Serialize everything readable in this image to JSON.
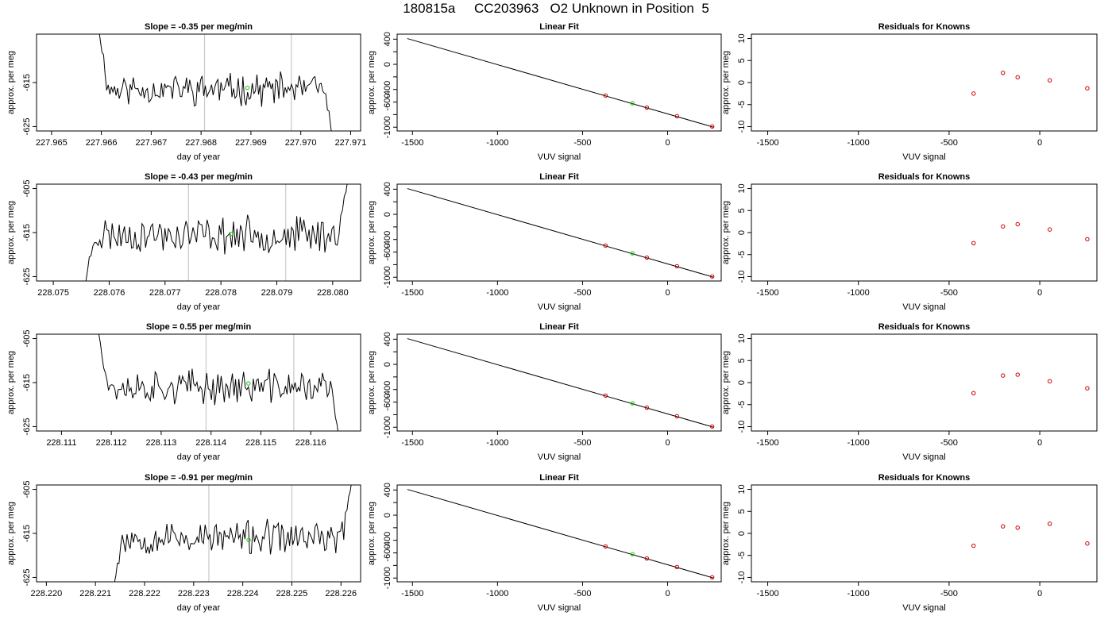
{
  "figure": {
    "title": "180815a     CC203963   O2 Unknown in Position  5"
  },
  "chart_data": [
    {
      "panel": "time-series-1",
      "type": "line",
      "title": "Slope =  -0.35  per meg/min",
      "xlabel": "day of year",
      "ylabel": "approx. per meg",
      "xlim": [
        227.9647,
        227.9712
      ],
      "ylim": [
        -626,
        -604
      ],
      "xticks": [
        227.965,
        227.966,
        227.967,
        227.968,
        227.969,
        227.97,
        227.971
      ],
      "xtick_labels": [
        "227.965",
        "227.966",
        "227.967",
        "227.968",
        "227.969",
        "227.970",
        "227.971"
      ],
      "yticks": [
        -625,
        -615
      ],
      "ytick_labels": [
        "-625",
        "-615"
      ],
      "series": [
        {
          "x0": 227.96595,
          "x1": 227.97066,
          "y_start": -603,
          "y_end": -630,
          "base": -616.5,
          "amp": 2.8,
          "seed": 11
        }
      ],
      "vlines": [
        227.96807,
        227.96981
      ],
      "highlight_point": {
        "x": 227.96893,
        "y": -616.2
      },
      "grid": false,
      "legend": "none"
    },
    {
      "panel": "linear-fit-1",
      "type": "scatter",
      "title": "Linear Fit",
      "xlabel": "VUV signal",
      "ylabel": "approx. per meg",
      "xlim": [
        -1590,
        315
      ],
      "ylim": [
        -1060,
        480
      ],
      "xticks": [
        -1500,
        -1000,
        -500,
        0
      ],
      "xtick_labels": [
        "-1500",
        "-1000",
        "-500",
        "0"
      ],
      "yticks": [
        -1000,
        -800,
        -600,
        -400,
        -200,
        0,
        200,
        400
      ],
      "ytick_labels": [
        "-1000",
        "",
        "-600",
        "-400",
        "",
        "0",
        "",
        "400"
      ],
      "fit_line": {
        "x": [
          -1530,
          270
        ],
        "y": [
          410,
          -1000
        ]
      },
      "points": [
        {
          "x": -365,
          "y": -497
        },
        {
          "x": -122,
          "y": -688
        },
        {
          "x": 55,
          "y": -826
        },
        {
          "x": 262,
          "y": -988
        }
      ],
      "highlight_point": {
        "x": -207,
        "y": -620
      },
      "grid": false,
      "legend": "none"
    },
    {
      "panel": "residuals-1",
      "type": "scatter",
      "title": "Residuals for Knowns",
      "xlabel": "VUV signal",
      "ylabel": "approx. per meg",
      "xlim": [
        -1590,
        315
      ],
      "ylim": [
        -11,
        11
      ],
      "xticks": [
        -1500,
        -1000,
        -500,
        0
      ],
      "xtick_labels": [
        "-1500",
        "-1000",
        "-500",
        "0"
      ],
      "yticks": [
        -10,
        -5,
        0,
        5,
        10
      ],
      "ytick_labels": [
        "-10",
        "-5",
        "0",
        "5",
        "10"
      ],
      "points": [
        {
          "x": -365,
          "y": -2.5
        },
        {
          "x": -203,
          "y": 2.2
        },
        {
          "x": -122,
          "y": 1.2
        },
        {
          "x": 55,
          "y": 0.5
        },
        {
          "x": 262,
          "y": -1.3
        }
      ],
      "grid": false,
      "legend": "none"
    },
    {
      "panel": "time-series-2",
      "type": "line",
      "title": "Slope =  -0.43  per meg/min",
      "xlabel": "day of year",
      "ylabel": "approx. per meg",
      "xlim": [
        228.0747,
        228.0805
      ],
      "ylim": [
        -626,
        -604
      ],
      "xticks": [
        228.075,
        228.076,
        228.077,
        228.078,
        228.079,
        228.08
      ],
      "xtick_labels": [
        "228.075",
        "228.076",
        "228.077",
        "228.078",
        "228.079",
        "228.080"
      ],
      "yticks": [
        -625,
        -615,
        -605
      ],
      "ytick_labels": [
        "-625",
        "-615",
        "-605"
      ],
      "series": [
        {
          "x0": 228.07555,
          "x1": 228.08027,
          "y_start": -628,
          "y_end": -603,
          "base": -615.5,
          "amp": 3.2,
          "seed": 23
        }
      ],
      "vlines": [
        228.07742,
        228.07916
      ],
      "highlight_point": {
        "x": 228.07818,
        "y": -615.3
      },
      "grid": false,
      "legend": "none"
    },
    {
      "panel": "linear-fit-2",
      "type": "scatter",
      "title": "Linear Fit",
      "xlabel": "VUV signal",
      "ylabel": "approx. per meg",
      "xlim": [
        -1590,
        315
      ],
      "ylim": [
        -1060,
        480
      ],
      "xticks": [
        -1500,
        -1000,
        -500,
        0
      ],
      "xtick_labels": [
        "-1500",
        "-1000",
        "-500",
        "0"
      ],
      "yticks": [
        -1000,
        -800,
        -600,
        -400,
        -200,
        0,
        200,
        400
      ],
      "ytick_labels": [
        "-1000",
        "",
        "-600",
        "-400",
        "",
        "0",
        "",
        "400"
      ],
      "fit_line": {
        "x": [
          -1530,
          270
        ],
        "y": [
          410,
          -1000
        ]
      },
      "points": [
        {
          "x": -365,
          "y": -497
        },
        {
          "x": -122,
          "y": -688
        },
        {
          "x": 55,
          "y": -826
        },
        {
          "x": 262,
          "y": -988
        }
      ],
      "highlight_point": {
        "x": -207,
        "y": -620
      },
      "grid": false,
      "legend": "none"
    },
    {
      "panel": "residuals-2",
      "type": "scatter",
      "title": "Residuals for Knowns",
      "xlabel": "VUV signal",
      "ylabel": "approx. per meg",
      "xlim": [
        -1590,
        315
      ],
      "ylim": [
        -11,
        11
      ],
      "xticks": [
        -1500,
        -1000,
        -500,
        0
      ],
      "xtick_labels": [
        "-1500",
        "-1000",
        "-500",
        "0"
      ],
      "yticks": [
        -10,
        -5,
        0,
        5,
        10
      ],
      "ytick_labels": [
        "-10",
        "-5",
        "0",
        "5",
        "10"
      ],
      "points": [
        {
          "x": -365,
          "y": -2.4
        },
        {
          "x": -203,
          "y": 1.4
        },
        {
          "x": -122,
          "y": 1.9
        },
        {
          "x": 55,
          "y": 0.7
        },
        {
          "x": 262,
          "y": -1.5
        }
      ],
      "grid": false,
      "legend": "none"
    },
    {
      "panel": "time-series-3",
      "type": "line",
      "title": "Slope =  0.55  per meg/min",
      "xlabel": "day of year",
      "ylabel": "approx. per meg",
      "xlim": [
        228.1105,
        228.117
      ],
      "ylim": [
        -626,
        -604
      ],
      "xticks": [
        228.111,
        228.112,
        228.113,
        228.114,
        228.115,
        228.116
      ],
      "xtick_labels": [
        "228.111",
        "228.112",
        "228.113",
        "228.114",
        "228.115",
        "228.116"
      ],
      "yticks": [
        -625,
        -615,
        -605
      ],
      "ytick_labels": [
        "-625",
        "-615",
        "-605"
      ],
      "series": [
        {
          "x0": 228.11175,
          "x1": 228.11659,
          "y_start": -604,
          "y_end": -629,
          "base": -616,
          "amp": 3.0,
          "seed": 37
        }
      ],
      "vlines": [
        228.1139,
        228.11566
      ],
      "highlight_point": {
        "x": 228.11475,
        "y": -615.2
      },
      "grid": false,
      "legend": "none"
    },
    {
      "panel": "linear-fit-3",
      "type": "scatter",
      "title": "Linear Fit",
      "xlabel": "VUV signal",
      "ylabel": "approx. per meg",
      "xlim": [
        -1590,
        315
      ],
      "ylim": [
        -1060,
        480
      ],
      "xticks": [
        -1500,
        -1000,
        -500,
        0
      ],
      "xtick_labels": [
        "-1500",
        "-1000",
        "-500",
        "0"
      ],
      "yticks": [
        -1000,
        -800,
        -600,
        -400,
        -200,
        0,
        200,
        400
      ],
      "ytick_labels": [
        "-1000",
        "",
        "-600",
        "-400",
        "",
        "0",
        "",
        "400"
      ],
      "fit_line": {
        "x": [
          -1530,
          270
        ],
        "y": [
          410,
          -1000
        ]
      },
      "points": [
        {
          "x": -365,
          "y": -497
        },
        {
          "x": -122,
          "y": -688
        },
        {
          "x": 55,
          "y": -826
        },
        {
          "x": 262,
          "y": -988
        }
      ],
      "highlight_point": {
        "x": -207,
        "y": -620
      },
      "grid": false,
      "legend": "none"
    },
    {
      "panel": "residuals-3",
      "type": "scatter",
      "title": "Residuals for Knowns",
      "xlabel": "VUV signal",
      "ylabel": "approx. per meg",
      "xlim": [
        -1590,
        315
      ],
      "ylim": [
        -11,
        11
      ],
      "xticks": [
        -1500,
        -1000,
        -500,
        0
      ],
      "xtick_labels": [
        "-1500",
        "-1000",
        "-500",
        "0"
      ],
      "yticks": [
        -10,
        -5,
        0,
        5,
        10
      ],
      "ytick_labels": [
        "-10",
        "-5",
        "0",
        "5",
        "10"
      ],
      "points": [
        {
          "x": -365,
          "y": -2.4
        },
        {
          "x": -203,
          "y": 1.6
        },
        {
          "x": -122,
          "y": 1.8
        },
        {
          "x": 55,
          "y": 0.3
        },
        {
          "x": 262,
          "y": -1.3
        }
      ],
      "grid": false,
      "legend": "none"
    },
    {
      "panel": "time-series-4",
      "type": "line",
      "title": "Slope =  -0.91  per meg/min",
      "xlabel": "day of year",
      "ylabel": "approx. per meg",
      "xlim": [
        228.2198,
        228.2264
      ],
      "ylim": [
        -626,
        -604
      ],
      "xticks": [
        228.22,
        228.221,
        228.222,
        228.223,
        228.224,
        228.225,
        228.226
      ],
      "xtick_labels": [
        "228.220",
        "228.221",
        "228.222",
        "228.223",
        "228.224",
        "228.225",
        "228.226"
      ],
      "yticks": [
        -625,
        -615,
        -605
      ],
      "ytick_labels": [
        "-625",
        "-615",
        "-605"
      ],
      "series": [
        {
          "x0": 228.22135,
          "x1": 228.22622,
          "y_start": -628,
          "y_end": -603,
          "base": -616,
          "amp": 3.0,
          "seed": 53
        }
      ],
      "vlines": [
        228.22331,
        228.225
      ],
      "highlight_point": {
        "x": 228.22412,
        "y": -616.5
      },
      "grid": false,
      "legend": "none"
    },
    {
      "panel": "linear-fit-4",
      "type": "scatter",
      "title": "Linear Fit",
      "xlabel": "VUV signal",
      "ylabel": "approx. per meg",
      "xlim": [
        -1590,
        315
      ],
      "ylim": [
        -1060,
        480
      ],
      "xticks": [
        -1500,
        -1000,
        -500,
        0
      ],
      "xtick_labels": [
        "-1500",
        "-1000",
        "-500",
        "0"
      ],
      "yticks": [
        -1000,
        -800,
        -600,
        -400,
        -200,
        0,
        200,
        400
      ],
      "ytick_labels": [
        "-1000",
        "",
        "-600",
        "-400",
        "",
        "0",
        "",
        "400"
      ],
      "fit_line": {
        "x": [
          -1530,
          270
        ],
        "y": [
          410,
          -1000
        ]
      },
      "points": [
        {
          "x": -365,
          "y": -497
        },
        {
          "x": -122,
          "y": -688
        },
        {
          "x": 55,
          "y": -826
        },
        {
          "x": 262,
          "y": -988
        }
      ],
      "highlight_point": {
        "x": -207,
        "y": -620
      },
      "grid": false,
      "legend": "none"
    },
    {
      "panel": "residuals-4",
      "type": "scatter",
      "title": "Residuals for Knowns",
      "xlabel": "VUV signal",
      "ylabel": "approx. per meg",
      "xlim": [
        -1590,
        315
      ],
      "ylim": [
        -11,
        11
      ],
      "xticks": [
        -1500,
        -1000,
        -500,
        0
      ],
      "xtick_labels": [
        "-1500",
        "-1000",
        "-500",
        "0"
      ],
      "yticks": [
        -10,
        -5,
        0,
        5,
        10
      ],
      "ytick_labels": [
        "-10",
        "-5",
        "0",
        "5",
        "10"
      ],
      "points": [
        {
          "x": -365,
          "y": -2.8
        },
        {
          "x": -203,
          "y": 1.6
        },
        {
          "x": -122,
          "y": 1.3
        },
        {
          "x": 55,
          "y": 2.2
        },
        {
          "x": 262,
          "y": -2.3
        }
      ],
      "grid": false,
      "legend": "none"
    }
  ],
  "colors": {
    "axis": "#000000",
    "series_line": "#000000",
    "vline": "#c8c8c8",
    "highlight": "#22cc22",
    "known_points": "#cc0000"
  }
}
